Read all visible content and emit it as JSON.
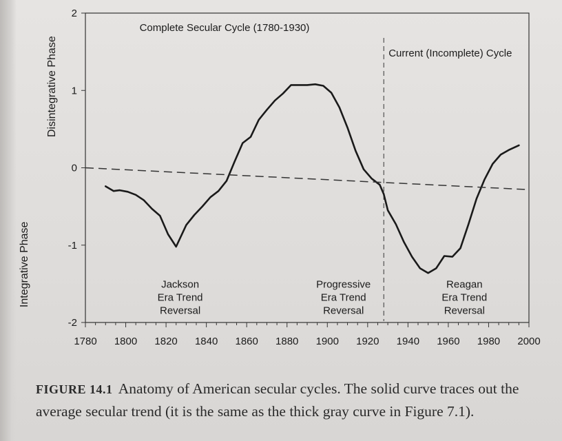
{
  "chart_data": {
    "type": "line",
    "xlim": [
      1780,
      2000
    ],
    "ylim": [
      -2,
      2
    ],
    "x_ticks": [
      1780,
      1800,
      1820,
      1840,
      1860,
      1880,
      1900,
      1920,
      1940,
      1960,
      1980,
      2000
    ],
    "y_ticks": [
      2,
      1,
      0,
      -1,
      -2
    ],
    "ylabel_upper": "Disintegrative Phase",
    "ylabel_lower": "Integrative Phase",
    "grid": false,
    "series": [
      {
        "style": "solid",
        "x": [
          1790,
          1794,
          1797,
          1801,
          1805,
          1809,
          1813,
          1817,
          1821,
          1825,
          1830,
          1834,
          1838,
          1842,
          1846,
          1850,
          1854,
          1858,
          1862,
          1866,
          1870,
          1874,
          1878,
          1882,
          1886,
          1890,
          1894,
          1898,
          1902,
          1906,
          1910,
          1914,
          1918,
          1922,
          1926,
          1928,
          1930,
          1934,
          1938,
          1942,
          1946,
          1950,
          1954,
          1958,
          1962,
          1966,
          1970,
          1974,
          1978,
          1982,
          1986,
          1990,
          1995
        ],
        "y": [
          -0.24,
          -0.3,
          -0.29,
          -0.31,
          -0.35,
          -0.42,
          -0.53,
          -0.62,
          -0.86,
          -1.02,
          -0.74,
          -0.61,
          -0.5,
          -0.38,
          -0.3,
          -0.17,
          0.08,
          0.32,
          0.4,
          0.62,
          0.75,
          0.87,
          0.96,
          1.07,
          1.07,
          1.07,
          1.08,
          1.06,
          0.97,
          0.78,
          0.52,
          0.22,
          -0.02,
          -0.14,
          -0.22,
          -0.34,
          -0.55,
          -0.73,
          -0.96,
          -1.15,
          -1.3,
          -1.36,
          -1.3,
          -1.14,
          -1.15,
          -1.04,
          -0.73,
          -0.4,
          -0.15,
          0.05,
          0.17,
          0.23,
          0.29
        ]
      },
      {
        "style": "dashed",
        "x": [
          1780,
          1998
        ],
        "y": [
          0.0,
          -0.28
        ]
      }
    ],
    "vline": {
      "x": 1928,
      "style": "dashed"
    },
    "annotations": [
      {
        "id": "complete-cycle",
        "lines": [
          "Complete Secular Cycle (1780-1930)"
        ],
        "x": 1849,
        "y": 1.77
      },
      {
        "id": "current-cycle",
        "lines": [
          "Current (Incomplete) Cycle"
        ],
        "x": 1961,
        "y": 1.44
      },
      {
        "id": "jackson",
        "lines": [
          "Jackson",
          "Era Trend",
          "Reversal"
        ],
        "x": 1827,
        "y": -1.55
      },
      {
        "id": "progressive",
        "lines": [
          "Progressive",
          "Era Trend",
          "Reversal"
        ],
        "x": 1908,
        "y": -1.55
      },
      {
        "id": "reagan",
        "lines": [
          "Reagan",
          "Era Trend",
          "Reversal"
        ],
        "x": 1968,
        "y": -1.55
      }
    ]
  },
  "caption": {
    "label": "FIGURE 14.1",
    "text": "Anatomy of American secular cycles. The solid curve traces out the average secular trend (it is the same as the thick gray curve in Figure 7.1)."
  }
}
